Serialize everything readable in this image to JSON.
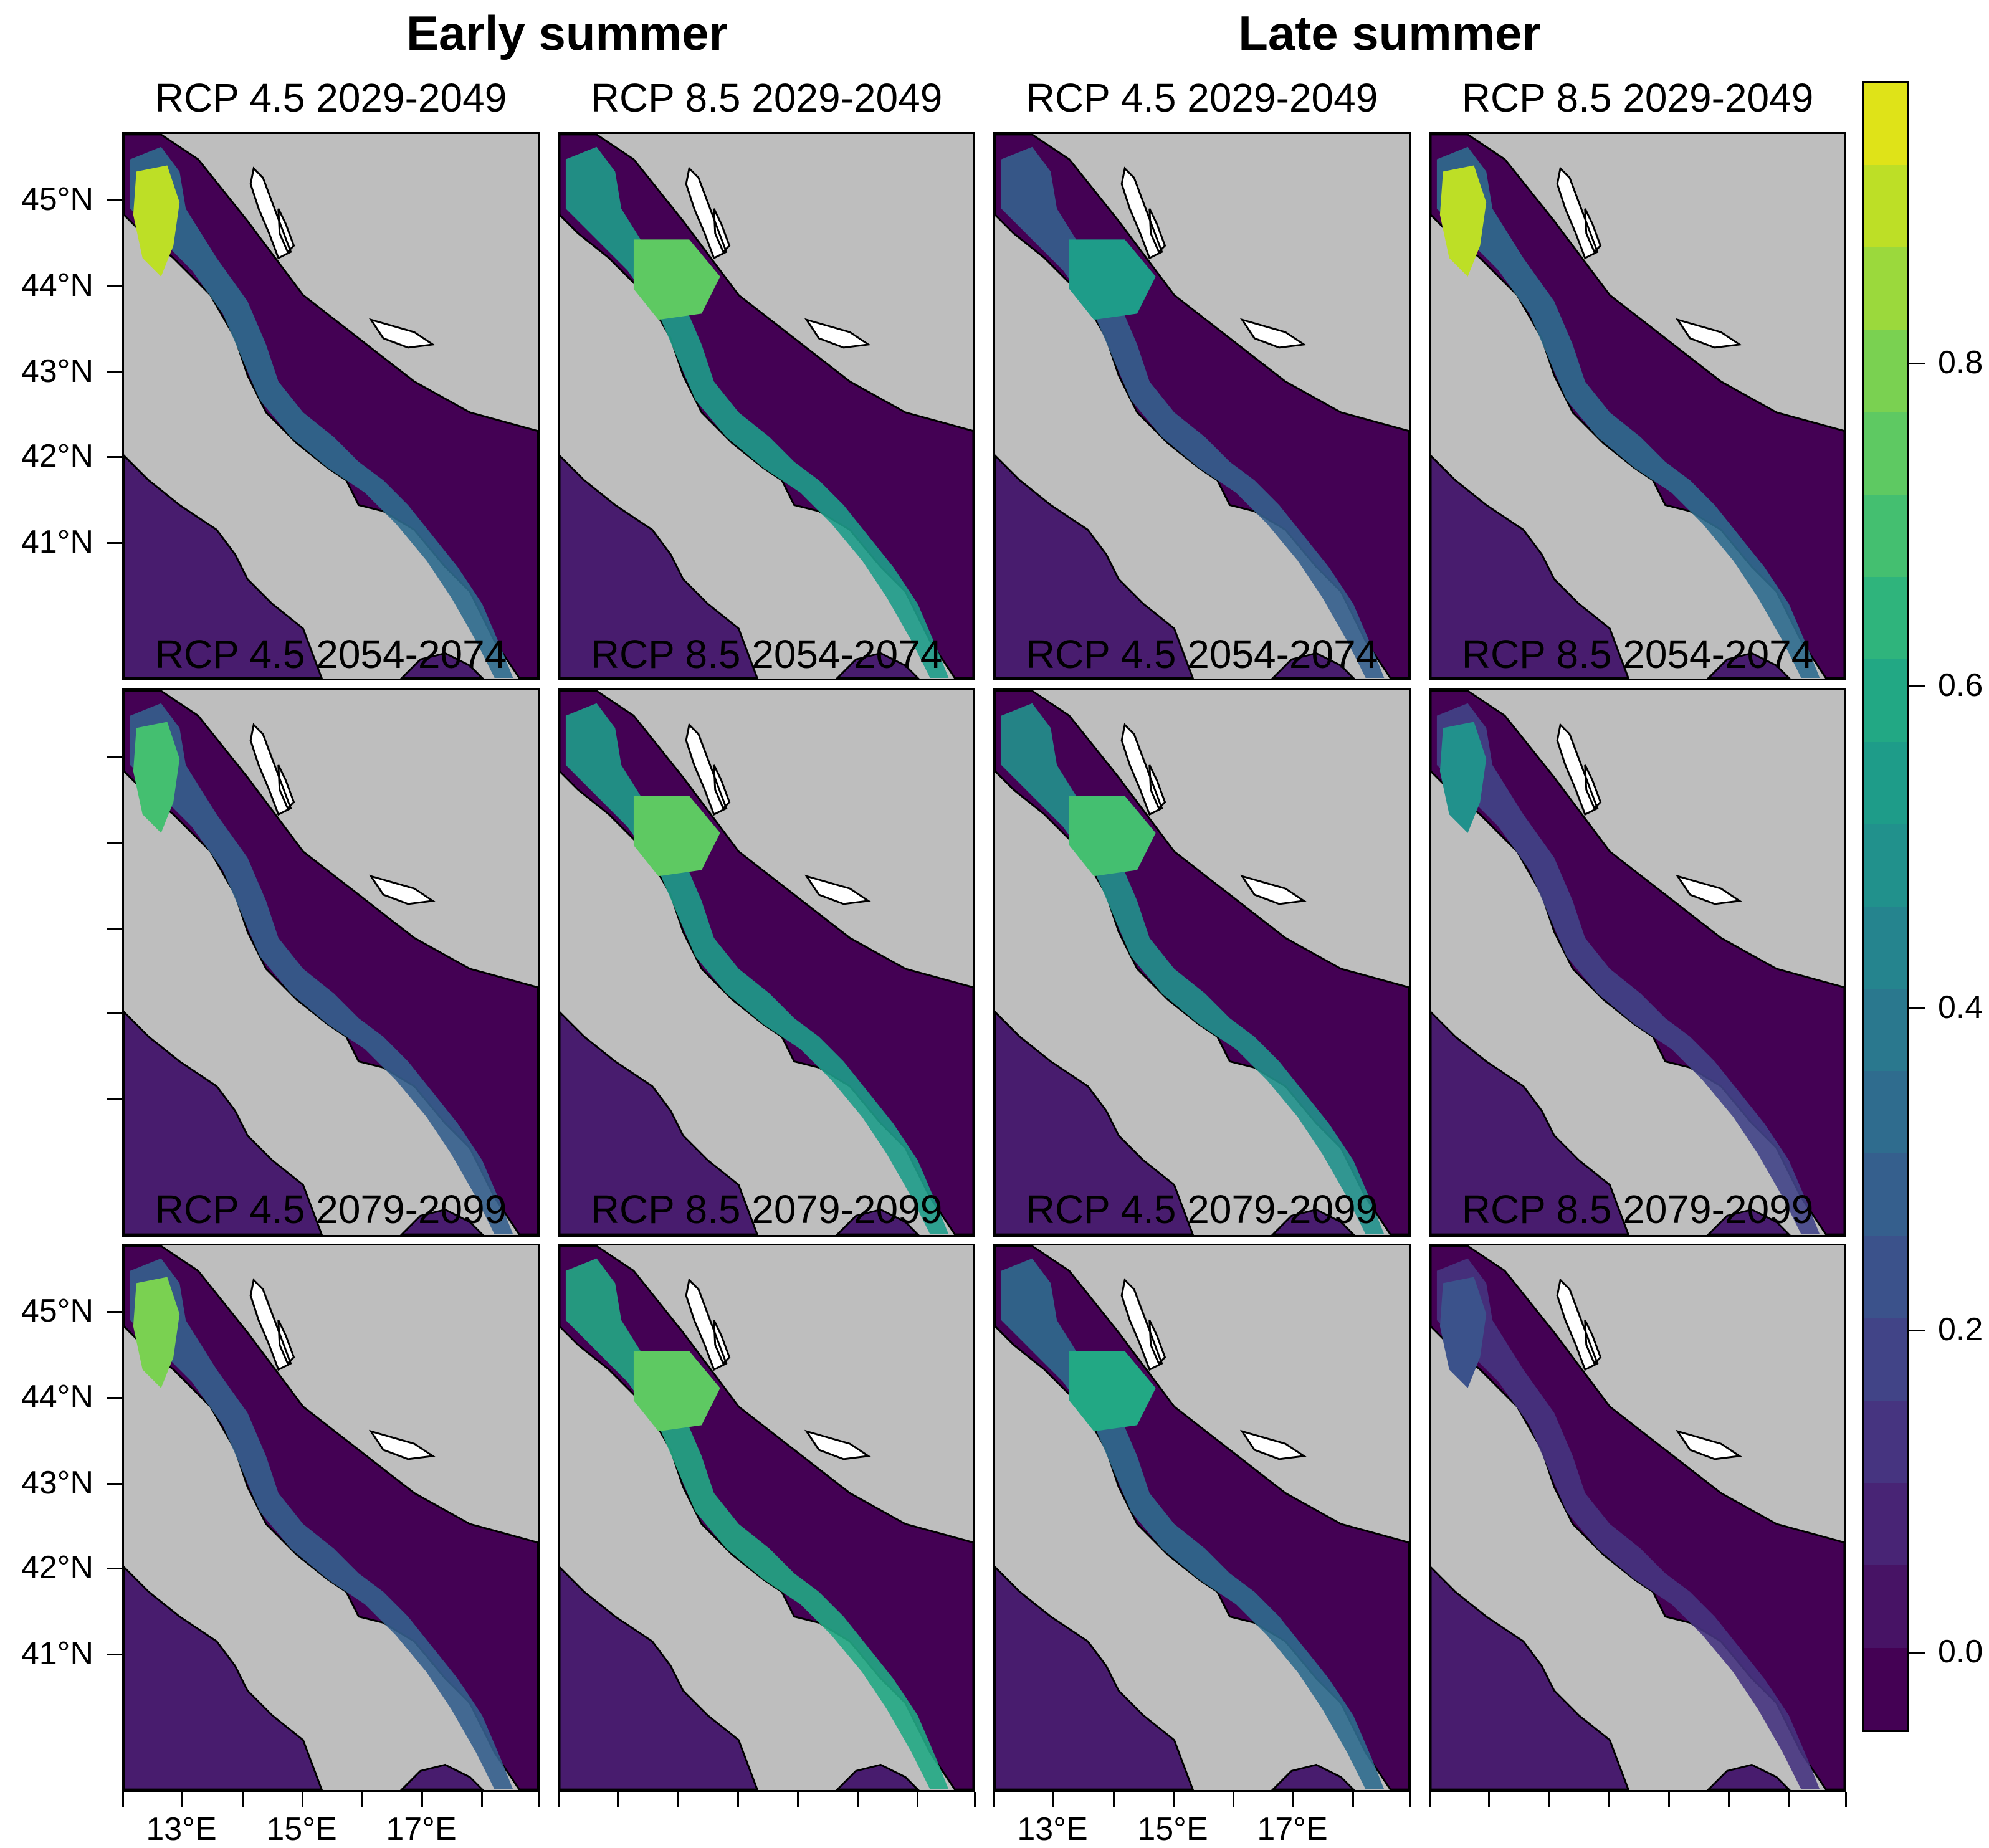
{
  "column_titles": [
    "Early summer",
    "Late summer"
  ],
  "panels": [
    {
      "title": "RCP 4.5 2029-2049",
      "season": "early",
      "scenario": "RCP 4.5",
      "period": "2029-2049",
      "hotspot": "north",
      "peak_value": 0.9,
      "mid_value": 0.35
    },
    {
      "title": "RCP 8.5 2029-2049",
      "season": "early",
      "scenario": "RCP 8.5",
      "period": "2029-2049",
      "hotspot": "central",
      "peak_value": 0.75,
      "mid_value": 0.55
    },
    {
      "title": "RCP 4.5 2029-2049",
      "season": "late",
      "scenario": "RCP 4.5",
      "period": "2029-2049",
      "hotspot": "central",
      "peak_value": 0.55,
      "mid_value": 0.3
    },
    {
      "title": "RCP 8.5 2029-2049",
      "season": "late",
      "scenario": "RCP 8.5",
      "period": "2029-2049",
      "hotspot": "north",
      "peak_value": 0.9,
      "mid_value": 0.35
    },
    {
      "title": "RCP 4.5 2054-2074",
      "season": "early",
      "scenario": "RCP 4.5",
      "period": "2054-2074",
      "hotspot": "north",
      "peak_value": 0.7,
      "mid_value": 0.3
    },
    {
      "title": "RCP 8.5 2054-2074",
      "season": "early",
      "scenario": "RCP 8.5",
      "period": "2054-2074",
      "hotspot": "central",
      "peak_value": 0.75,
      "mid_value": 0.55
    },
    {
      "title": "RCP 4.5 2054-2074",
      "season": "late",
      "scenario": "RCP 4.5",
      "period": "2054-2074",
      "hotspot": "central",
      "peak_value": 0.7,
      "mid_value": 0.5
    },
    {
      "title": "RCP 8.5 2054-2074",
      "season": "late",
      "scenario": "RCP 8.5",
      "period": "2054-2074",
      "hotspot": "north",
      "peak_value": 0.5,
      "mid_value": 0.2
    },
    {
      "title": "RCP 4.5 2079-2099",
      "season": "early",
      "scenario": "RCP 4.5",
      "period": "2079-2099",
      "hotspot": "north",
      "peak_value": 0.8,
      "mid_value": 0.3
    },
    {
      "title": "RCP 8.5 2079-2099",
      "season": "early",
      "scenario": "RCP 8.5",
      "period": "2079-2099",
      "hotspot": "central",
      "peak_value": 0.75,
      "mid_value": 0.6
    },
    {
      "title": "RCP 4.5 2079-2099",
      "season": "late",
      "scenario": "RCP 4.5",
      "period": "2079-2099",
      "hotspot": "central",
      "peak_value": 0.6,
      "mid_value": 0.35
    },
    {
      "title": "RCP 8.5 2079-2099",
      "season": "late",
      "scenario": "RCP 8.5",
      "period": "2079-2099",
      "hotspot": "north",
      "peak_value": 0.25,
      "mid_value": 0.15
    }
  ],
  "lat_labels": [
    "45°N",
    "44°N",
    "43°N",
    "42°N",
    "41°N"
  ],
  "lon_labels": [
    "13°E",
    "15°E",
    "17°E"
  ],
  "colorbar": {
    "labels": [
      "0.8",
      "0.6",
      "0.4",
      "0.2",
      "0.0"
    ],
    "range": [
      -0.05,
      0.975
    ],
    "colors": [
      "#440154",
      "#471365",
      "#482475",
      "#463480",
      "#414487",
      "#3b528b",
      "#355f8d",
      "#2f6c8e",
      "#2a788e",
      "#25848e",
      "#21918c",
      "#1e9c89",
      "#22a884",
      "#2fb47c",
      "#44bf70",
      "#5ec962",
      "#7ad151",
      "#9bd93c",
      "#bddf26",
      "#dfe318"
    ],
    "land_color": "#bebebe",
    "base_sea_color": "#440154",
    "low_sea_color": "#481c6e"
  }
}
